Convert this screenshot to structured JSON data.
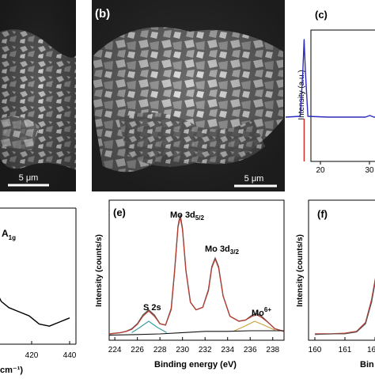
{
  "figure": {
    "panels": {
      "a": {
        "scale_bar": "5 μm"
      },
      "b": {
        "label": "(b)",
        "scale_bar": "5 μm"
      },
      "c": {
        "label": "(c)",
        "ylabel": "Intensity (a.u.)",
        "ticks": [
          "20",
          "30"
        ]
      },
      "d": {
        "peak": "A",
        "peak_sub": "1g",
        "ticks": [
          "420",
          "440"
        ],
        "xlabel_partial": "cm⁻¹)"
      },
      "e": {
        "label": "(e)",
        "peaks": {
          "mo52": {
            "main": "Mo 3d",
            "sub": "5/2"
          },
          "mo32": {
            "main": "Mo 3d",
            "sub": "3/2"
          },
          "s2s": "S 2s",
          "mo6": {
            "main": "Mo",
            "sup": "6+"
          }
        }
      },
      "f": {
        "label": "(f)",
        "ylabel": "Intensity (counts/s)",
        "ticks": [
          "160",
          "161",
          "16"
        ],
        "xlabel_partial": "Bin"
      }
    }
  },
  "chart_data": [
    {
      "type": "line",
      "panel": "c",
      "title": "",
      "xlabel": "",
      "ylabel": "Intensity (a.u.)",
      "xlim": [
        10,
        32
      ],
      "x_ticks": [
        20,
        30
      ],
      "series": [
        {
          "color": "#2b2bbf",
          "points": [
            [
              10,
              0.02
            ],
            [
              13.5,
              0.03
            ],
            [
              14.1,
              0.6
            ],
            [
              14.4,
              1.0
            ],
            [
              14.7,
              0.6
            ],
            [
              15.3,
              0.03
            ],
            [
              20,
              0.02
            ],
            [
              29,
              0.02
            ],
            [
              30,
              0.04
            ],
            [
              31,
              0.02
            ],
            [
              32,
              0.02
            ]
          ]
        }
      ],
      "reference_lines": [
        {
          "x": 14.4,
          "color": "#d62728"
        }
      ]
    },
    {
      "type": "line",
      "panel": "d",
      "xlabel": "(cm⁻¹)",
      "xlim": [
        400,
        440
      ],
      "x_ticks": [
        420,
        440
      ],
      "annotations": [
        "A1g"
      ],
      "series": [
        {
          "color": "#000000",
          "points": [
            [
              400,
              0.35
            ],
            [
              403,
              0.55
            ],
            [
              405,
              0.82
            ],
            [
              406,
              0.92
            ],
            [
              407,
              0.95
            ],
            [
              408,
              0.7
            ],
            [
              410,
              0.45
            ],
            [
              413,
              0.3
            ],
            [
              416,
              0.24
            ],
            [
              420,
              0.2
            ],
            [
              424,
              0.16
            ],
            [
              428,
              0.08
            ],
            [
              432,
              0.06
            ],
            [
              436,
              0.1
            ],
            [
              440,
              0.14
            ]
          ]
        }
      ]
    },
    {
      "type": "line",
      "panel": "e",
      "title": "",
      "xlabel": "Binding energy (eV)",
      "ylabel": "Intensity (counts/s)",
      "xlim": [
        223.5,
        239
      ],
      "x_ticks": [
        224,
        226,
        228,
        230,
        232,
        234,
        236,
        238
      ],
      "annotations": [
        "S 2s",
        "Mo 3d5/2",
        "Mo 3d3/2",
        "Mo6+"
      ],
      "series": [
        {
          "color": "#555555",
          "points": [
            [
              223.5,
              0.05
            ],
            [
              224,
              0.055
            ],
            [
              224.5,
              0.06
            ],
            [
              225,
              0.07
            ],
            [
              225.5,
              0.09
            ],
            [
              226,
              0.13
            ],
            [
              226.5,
              0.2
            ],
            [
              227,
              0.24
            ],
            [
              227.5,
              0.2
            ],
            [
              228,
              0.13
            ],
            [
              228.5,
              0.12
            ],
            [
              229,
              0.25
            ],
            [
              229.3,
              0.55
            ],
            [
              229.6,
              0.9
            ],
            [
              229.8,
              0.99
            ],
            [
              230,
              0.88
            ],
            [
              230.3,
              0.55
            ],
            [
              230.7,
              0.3
            ],
            [
              231.2,
              0.24
            ],
            [
              231.8,
              0.26
            ],
            [
              232.3,
              0.4
            ],
            [
              232.6,
              0.58
            ],
            [
              232.9,
              0.65
            ],
            [
              233.2,
              0.58
            ],
            [
              233.6,
              0.35
            ],
            [
              234.2,
              0.19
            ],
            [
              235,
              0.15
            ],
            [
              235.6,
              0.16
            ],
            [
              236.2,
              0.2
            ],
            [
              236.6,
              0.21
            ],
            [
              237,
              0.19
            ],
            [
              237.6,
              0.14
            ],
            [
              238.2,
              0.09
            ],
            [
              239,
              0.07
            ]
          ]
        },
        {
          "color": "#c0392b",
          "points": [
            [
              223.5,
              0.05
            ],
            [
              224,
              0.055
            ],
            [
              224.5,
              0.06
            ],
            [
              225,
              0.07
            ],
            [
              225.5,
              0.085
            ],
            [
              226,
              0.125
            ],
            [
              226.5,
              0.19
            ],
            [
              227,
              0.23
            ],
            [
              227.5,
              0.19
            ],
            [
              228,
              0.13
            ],
            [
              228.5,
              0.12
            ],
            [
              229,
              0.24
            ],
            [
              229.3,
              0.54
            ],
            [
              229.6,
              0.89
            ],
            [
              229.8,
              0.97
            ],
            [
              230,
              0.87
            ],
            [
              230.3,
              0.55
            ],
            [
              230.7,
              0.3
            ],
            [
              231.2,
              0.24
            ],
            [
              231.8,
              0.26
            ],
            [
              232.3,
              0.39
            ],
            [
              232.6,
              0.57
            ],
            [
              232.9,
              0.64
            ],
            [
              233.2,
              0.57
            ],
            [
              233.6,
              0.35
            ],
            [
              234.2,
              0.19
            ],
            [
              235,
              0.15
            ],
            [
              235.6,
              0.16
            ],
            [
              236.2,
              0.19
            ],
            [
              236.6,
              0.2
            ],
            [
              237,
              0.18
            ],
            [
              237.6,
              0.14
            ],
            [
              238.2,
              0.09
            ],
            [
              239,
              0.07
            ]
          ]
        },
        {
          "color": "#3a9a9a",
          "points": [
            [
              225.5,
              0.06
            ],
            [
              226.2,
              0.1
            ],
            [
              227,
              0.15
            ],
            [
              227.8,
              0.1
            ],
            [
              228.6,
              0.06
            ]
          ]
        },
        {
          "color": "#c8a13a",
          "points": [
            [
              234.5,
              0.07
            ],
            [
              235.5,
              0.11
            ],
            [
              236.4,
              0.15
            ],
            [
              237.2,
              0.12
            ],
            [
              238.2,
              0.08
            ]
          ]
        },
        {
          "color": "#111111",
          "points": [
            [
              223.5,
              0.04
            ],
            [
              226,
              0.045
            ],
            [
              228,
              0.05
            ],
            [
              230,
              0.06
            ],
            [
              232,
              0.07
            ],
            [
              234,
              0.07
            ],
            [
              236,
              0.075
            ],
            [
              238,
              0.075
            ],
            [
              239,
              0.075
            ]
          ]
        }
      ]
    },
    {
      "type": "line",
      "panel": "f",
      "ylabel": "Intensity (counts/s)",
      "xlabel": "Bin",
      "xlim": [
        160,
        162.2
      ],
      "x_ticks": [
        160,
        161,
        162
      ],
      "series": [
        {
          "color": "#c0392b",
          "points": [
            [
              160,
              0.05
            ],
            [
              160.5,
              0.05
            ],
            [
              161,
              0.055
            ],
            [
              161.4,
              0.07
            ],
            [
              161.7,
              0.14
            ],
            [
              161.9,
              0.32
            ],
            [
              162.1,
              0.58
            ],
            [
              162.2,
              0.72
            ]
          ]
        },
        {
          "color": "#555555",
          "points": [
            [
              160,
              0.045
            ],
            [
              160.5,
              0.05
            ],
            [
              161,
              0.05
            ],
            [
              161.4,
              0.065
            ],
            [
              161.7,
              0.13
            ],
            [
              161.9,
              0.3
            ],
            [
              162.1,
              0.56
            ],
            [
              162.2,
              0.7
            ]
          ]
        }
      ]
    }
  ]
}
